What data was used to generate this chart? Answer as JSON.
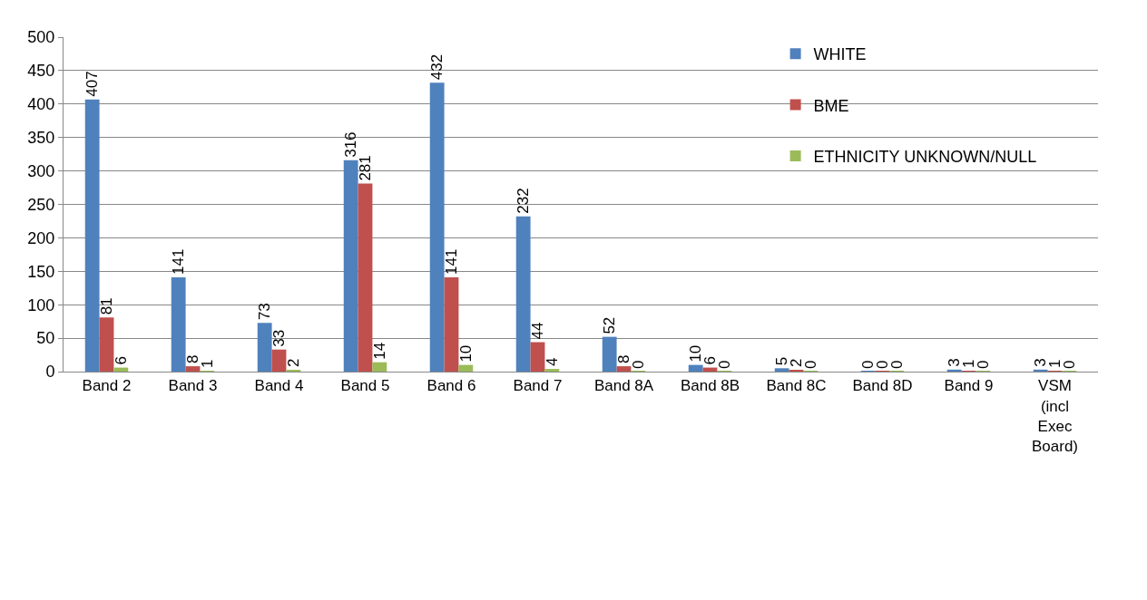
{
  "chart_data": {
    "type": "bar",
    "categories": [
      "Band 2",
      "Band 3",
      "Band 4",
      "Band 5",
      "Band 6",
      "Band 7",
      "Band 8A",
      "Band 8B",
      "Band 8C",
      "Band 8D",
      "Band 9",
      "VSM (incl Exec Board)"
    ],
    "series": [
      {
        "name": "WHITE",
        "color": "#4f81bd",
        "values": [
          407,
          141,
          73,
          316,
          432,
          232,
          52,
          10,
          5,
          0,
          3,
          3
        ]
      },
      {
        "name": "BME",
        "color": "#c0504d",
        "values": [
          81,
          8,
          33,
          281,
          141,
          44,
          8,
          6,
          2,
          0,
          1,
          1
        ]
      },
      {
        "name": "ETHNICITY UNKNOWN/NULL",
        "color": "#9bbb59",
        "values": [
          6,
          1,
          2,
          14,
          10,
          4,
          0,
          0,
          0,
          0,
          0,
          0
        ]
      }
    ],
    "ylim": [
      0,
      500
    ],
    "yticks": [
      0,
      50,
      100,
      150,
      200,
      250,
      300,
      350,
      400,
      450,
      500
    ],
    "grid": "y",
    "legend": "top right",
    "data_labels": true
  }
}
